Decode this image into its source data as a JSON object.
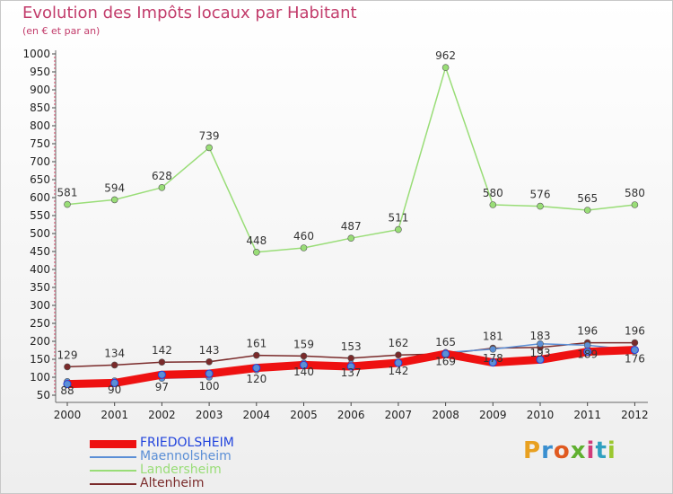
{
  "header": {
    "title": "Evolution des Impôts locaux par Habitant",
    "subtitle": "(en € et par an)"
  },
  "logo": {
    "text": "Proxiti",
    "colors": [
      "#e8a020",
      "#3a8fd0",
      "#e05a20",
      "#60b030",
      "#d03c7a",
      "#30a0c0",
      "#9bc830"
    ]
  },
  "chart_data": {
    "type": "line",
    "title": "Evolution des Impôts locaux par Habitant",
    "subtitle": "(en € et par an)",
    "xlabel": "",
    "ylabel": "",
    "ylim": [
      50,
      1000
    ],
    "yticks": [
      50,
      100,
      150,
      200,
      250,
      300,
      350,
      400,
      450,
      500,
      550,
      600,
      650,
      700,
      750,
      800,
      850,
      900,
      950,
      1000
    ],
    "grid": false,
    "legend": "bottom-left",
    "x": [
      "2000",
      "2001",
      "2002",
      "2003",
      "2004",
      "2005",
      "2006",
      "2007",
      "2008",
      "2009",
      "2010",
      "2011",
      "2012"
    ],
    "series": [
      {
        "name": "FRIEDOLSHEIM",
        "color": "#ee1111",
        "labelColor": "#2244dd",
        "values": [
          81,
          84,
          107,
          110,
          126,
          134,
          130,
          140,
          165,
          141,
          149,
          171,
          176
        ],
        "labels": false
      },
      {
        "name": "Maennolsheim",
        "color": "#5b8fd6",
        "labelColor": "#5b8fd6",
        "values": [
          88,
          90,
          97,
          100,
          120,
          140,
          137,
          142,
          169,
          178,
          193,
          189,
          176
        ],
        "labels": true
      },
      {
        "name": "Landersheim",
        "color": "#99dd77",
        "labelColor": "#99dd77",
        "values": [
          581,
          594,
          628,
          739,
          448,
          460,
          487,
          511,
          962,
          580,
          576,
          565,
          580
        ],
        "labels": true
      },
      {
        "name": "Altenheim",
        "color": "#7a2a2a",
        "labelColor": "#7a2a2a",
        "values": [
          129,
          134,
          142,
          143,
          161,
          159,
          153,
          162,
          165,
          181,
          183,
          196,
          196
        ],
        "labels": true
      }
    ]
  }
}
